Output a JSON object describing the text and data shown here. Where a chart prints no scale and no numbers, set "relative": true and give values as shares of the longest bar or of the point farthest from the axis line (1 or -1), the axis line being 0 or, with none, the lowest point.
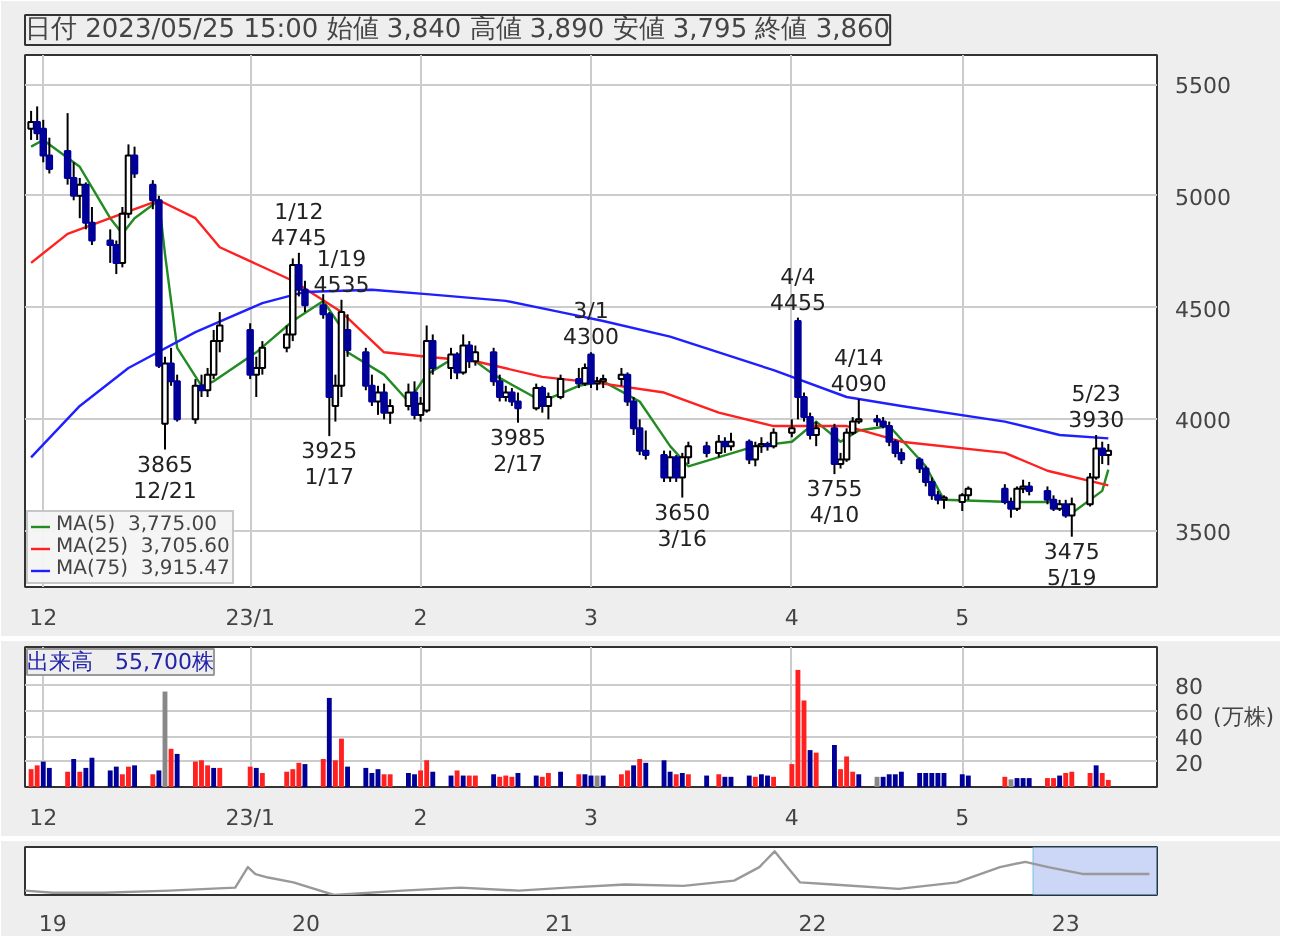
{
  "chart_data": [
    {
      "type": "candlestick",
      "title": "日付 2023/05/25 15:00 始値 3,840 高値 3,890 安値 3,795 終値 3,860",
      "x": [
        "2022-11-29",
        "2022-11-30",
        "2022-12-01",
        "2022-12-02",
        "2022-12-05",
        "2022-12-06",
        "2022-12-07",
        "2022-12-08",
        "2022-12-09",
        "2022-12-12",
        "2022-12-13",
        "2022-12-14",
        "2022-12-15",
        "2022-12-16",
        "2022-12-19",
        "2022-12-20",
        "2022-12-21",
        "2022-12-22",
        "2022-12-23",
        "2022-12-26",
        "2022-12-27",
        "2022-12-28",
        "2022-12-29",
        "2022-12-30",
        "2023-01-04",
        "2023-01-05",
        "2023-01-06",
        "2023-01-10",
        "2023-01-11",
        "2023-01-12",
        "2023-01-13",
        "2023-01-16",
        "2023-01-17",
        "2023-01-18",
        "2023-01-19",
        "2023-01-20",
        "2023-01-23",
        "2023-01-24",
        "2023-01-25",
        "2023-01-26",
        "2023-01-27",
        "2023-01-30",
        "2023-01-31",
        "2023-02-01",
        "2023-02-02",
        "2023-02-03",
        "2023-02-06",
        "2023-02-07",
        "2023-02-08",
        "2023-02-09",
        "2023-02-10",
        "2023-02-13",
        "2023-02-14",
        "2023-02-15",
        "2023-02-16",
        "2023-02-17",
        "2023-02-20",
        "2023-02-21",
        "2023-02-22",
        "2023-02-24",
        "2023-02-27",
        "2023-02-28",
        "2023-03-01",
        "2023-03-02",
        "2023-03-03",
        "2023-03-06",
        "2023-03-07",
        "2023-03-08",
        "2023-03-09",
        "2023-03-10",
        "2023-03-13",
        "2023-03-14",
        "2023-03-15",
        "2023-03-16",
        "2023-03-17",
        "2023-03-20",
        "2023-03-22",
        "2023-03-23",
        "2023-03-24",
        "2023-03-27",
        "2023-03-28",
        "2023-03-29",
        "2023-03-30",
        "2023-03-31",
        "2023-04-03",
        "2023-04-04",
        "2023-04-05",
        "2023-04-06",
        "2023-04-07",
        "2023-04-10",
        "2023-04-11",
        "2023-04-12",
        "2023-04-13",
        "2023-04-14",
        "2023-04-17",
        "2023-04-18",
        "2023-04-19",
        "2023-04-20",
        "2023-04-21",
        "2023-04-24",
        "2023-04-25",
        "2023-04-26",
        "2023-04-27",
        "2023-04-28",
        "2023-05-01",
        "2023-05-02",
        "2023-05-08",
        "2023-05-09",
        "2023-05-10",
        "2023-05-11",
        "2023-05-12",
        "2023-05-15",
        "2023-05-16",
        "2023-05-17",
        "2023-05-18",
        "2023-05-19",
        "2023-05-22",
        "2023-05-23",
        "2023-05-24",
        "2023-05-25"
      ],
      "ohlc": [
        [
          5300,
          5380,
          5250,
          5330
        ],
        [
          5330,
          5400,
          5250,
          5280
        ],
        [
          5300,
          5340,
          5150,
          5180
        ],
        [
          5180,
          5260,
          5100,
          5120
        ],
        [
          5200,
          5370,
          5050,
          5080
        ],
        [
          5080,
          5150,
          4980,
          5000
        ],
        [
          5000,
          5080,
          4900,
          5050
        ],
        [
          5050,
          5060,
          4850,
          4880
        ],
        [
          4880,
          4950,
          4780,
          4800
        ],
        [
          4800,
          4850,
          4700,
          4780
        ],
        [
          4780,
          4800,
          4650,
          4700
        ],
        [
          4700,
          4950,
          4680,
          4920
        ],
        [
          4920,
          5230,
          4900,
          5180
        ],
        [
          5180,
          5220,
          5080,
          5100
        ],
        [
          5050,
          5070,
          4940,
          4980
        ],
        [
          4980,
          5000,
          4230,
          4240
        ],
        [
          3980,
          4280,
          3865,
          4250
        ],
        [
          4250,
          4320,
          4150,
          4170
        ],
        [
          4170,
          4200,
          3990,
          4000
        ],
        [
          4000,
          4180,
          3980,
          4150
        ],
        [
          4150,
          4200,
          4100,
          4130
        ],
        [
          4130,
          4230,
          4100,
          4200
        ],
        [
          4200,
          4400,
          4180,
          4350
        ],
        [
          4350,
          4480,
          4300,
          4420
        ],
        [
          4400,
          4430,
          4180,
          4200
        ],
        [
          4200,
          4280,
          4100,
          4230
        ],
        [
          4230,
          4350,
          4200,
          4320
        ],
        [
          4320,
          4420,
          4300,
          4380
        ],
        [
          4380,
          4720,
          4350,
          4690
        ],
        [
          4690,
          4745,
          4550,
          4580
        ],
        [
          4580,
          4620,
          4480,
          4510
        ],
        [
          4510,
          4560,
          4450,
          4470
        ],
        [
          4470,
          4480,
          3925,
          4100
        ],
        [
          4060,
          4200,
          3990,
          4150
        ],
        [
          4150,
          4535,
          4100,
          4480
        ],
        [
          4400,
          4470,
          4280,
          4310
        ],
        [
          4300,
          4320,
          4130,
          4150
        ],
        [
          4150,
          4200,
          4060,
          4080
        ],
        [
          4080,
          4150,
          4020,
          4120
        ],
        [
          4120,
          4160,
          4000,
          4030
        ],
        [
          4030,
          4090,
          3980,
          4060
        ],
        [
          4060,
          4160,
          4040,
          4120
        ],
        [
          4120,
          4170,
          4000,
          4020
        ],
        [
          4020,
          4100,
          3990,
          4070
        ],
        [
          4040,
          4420,
          4030,
          4350
        ],
        [
          4350,
          4380,
          4200,
          4230
        ],
        [
          4230,
          4320,
          4180,
          4290
        ],
        [
          4290,
          4300,
          4180,
          4210
        ],
        [
          4210,
          4380,
          4200,
          4330
        ],
        [
          4330,
          4350,
          4230,
          4260
        ],
        [
          4260,
          4330,
          4240,
          4300
        ],
        [
          4300,
          4320,
          4150,
          4170
        ],
        [
          4170,
          4200,
          4080,
          4100
        ],
        [
          4100,
          4150,
          4080,
          4120
        ],
        [
          4120,
          4140,
          4060,
          4080
        ],
        [
          4080,
          4120,
          3985,
          4050
        ],
        [
          4050,
          4160,
          4040,
          4140
        ],
        [
          4140,
          4150,
          4030,
          4060
        ],
        [
          4060,
          4120,
          4000,
          4100
        ],
        [
          4100,
          4200,
          4090,
          4180
        ],
        [
          4180,
          4230,
          4140,
          4160
        ],
        [
          4160,
          4250,
          4150,
          4230
        ],
        [
          4290,
          4300,
          4140,
          4160
        ],
        [
          4160,
          4190,
          4130,
          4170
        ],
        [
          4170,
          4200,
          4140,
          4180
        ],
        [
          4180,
          4230,
          4150,
          4200
        ],
        [
          4200,
          4210,
          4060,
          4080
        ],
        [
          4080,
          4100,
          3930,
          3960
        ],
        [
          3960,
          4000,
          3840,
          3860
        ],
        [
          3860,
          3950,
          3820,
          3840
        ],
        [
          3840,
          3860,
          3720,
          3740
        ],
        [
          3740,
          3860,
          3720,
          3830
        ],
        [
          3830,
          3840,
          3720,
          3740
        ],
        [
          3740,
          3850,
          3650,
          3830
        ],
        [
          3830,
          3900,
          3800,
          3880
        ],
        [
          3880,
          3900,
          3830,
          3850
        ],
        [
          3850,
          3930,
          3830,
          3900
        ],
        [
          3900,
          3920,
          3850,
          3880
        ],
        [
          3880,
          3940,
          3860,
          3900
        ],
        [
          3900,
          3910,
          3800,
          3820
        ],
        [
          3820,
          3900,
          3790,
          3880
        ],
        [
          3880,
          3920,
          3850,
          3890
        ],
        [
          3890,
          3900,
          3860,
          3880
        ],
        [
          3880,
          3960,
          3870,
          3940
        ],
        [
          3940,
          4000,
          3920,
          3960
        ],
        [
          4440,
          4455,
          4000,
          4100
        ],
        [
          4100,
          4120,
          3990,
          4010
        ],
        [
          4010,
          4030,
          3910,
          3930
        ],
        [
          3930,
          3990,
          3880,
          3960
        ],
        [
          3960,
          3980,
          3755,
          3800
        ],
        [
          3800,
          3850,
          3780,
          3820
        ],
        [
          3820,
          3960,
          3810,
          3940
        ],
        [
          3940,
          4010,
          3930,
          3990
        ],
        [
          3990,
          4090,
          3980,
          4000
        ],
        [
          4000,
          4020,
          3970,
          3990
        ],
        [
          3990,
          4010,
          3960,
          3970
        ],
        [
          3970,
          3990,
          3880,
          3900
        ],
        [
          3900,
          3910,
          3830,
          3850
        ],
        [
          3850,
          3870,
          3800,
          3820
        ],
        [
          3820,
          3830,
          3760,
          3780
        ],
        [
          3780,
          3790,
          3700,
          3720
        ],
        [
          3720,
          3740,
          3640,
          3660
        ],
        [
          3660,
          3680,
          3620,
          3640
        ],
        [
          3640,
          3660,
          3600,
          3650
        ],
        [
          3630,
          3670,
          3590,
          3660
        ],
        [
          3660,
          3700,
          3640,
          3690
        ],
        [
          3690,
          3710,
          3620,
          3630
        ],
        [
          3630,
          3650,
          3560,
          3600
        ],
        [
          3600,
          3700,
          3590,
          3690
        ],
        [
          3690,
          3730,
          3670,
          3700
        ],
        [
          3700,
          3720,
          3660,
          3680
        ],
        [
          3680,
          3700,
          3620,
          3640
        ],
        [
          3640,
          3660,
          3590,
          3600
        ],
        [
          3600,
          3640,
          3590,
          3620
        ],
        [
          3620,
          3640,
          3560,
          3570
        ],
        [
          3570,
          3650,
          3475,
          3620
        ],
        [
          3620,
          3760,
          3610,
          3740
        ],
        [
          3740,
          3930,
          3730,
          3870
        ],
        [
          3870,
          3900,
          3800,
          3840
        ],
        [
          3840,
          3890,
          3795,
          3860
        ]
      ],
      "series": [
        {
          "name": "MA(5)  3,775.00",
          "color": "#228b22",
          "type": "line",
          "x": [
            "2022-11-29",
            "2022-12-01",
            "2022-12-07",
            "2022-12-12",
            "2022-12-14",
            "2022-12-16",
            "2022-12-20",
            "2022-12-21",
            "2022-12-23",
            "2022-12-27",
            "2022-12-29",
            "2023-01-05",
            "2023-01-11",
            "2023-01-16",
            "2023-01-19",
            "2023-01-20",
            "2023-01-26",
            "2023-01-30",
            "2023-02-02",
            "2023-02-08",
            "2023-02-13",
            "2023-02-21",
            "2023-02-27",
            "2023-03-03",
            "2023-03-09",
            "2023-03-14",
            "2023-03-17",
            "2023-03-28",
            "2023-04-03",
            "2023-04-07",
            "2023-04-11",
            "2023-04-14",
            "2023-04-19",
            "2023-04-25",
            "2023-04-28",
            "2023-05-09",
            "2023-05-16",
            "2023-05-19",
            "2023-05-24",
            "2023-05-25"
          ],
          "values": [
            5220,
            5250,
            5130,
            4900,
            4830,
            4900,
            4980,
            4740,
            4320,
            4150,
            4170,
            4300,
            4440,
            4530,
            4410,
            4300,
            4200,
            4080,
            4200,
            4300,
            4200,
            4080,
            4150,
            4170,
            4080,
            3880,
            3790,
            3880,
            3900,
            3990,
            3900,
            3950,
            3970,
            3790,
            3640,
            3630,
            3630,
            3580,
            3680,
            3775
          ]
        },
        {
          "name": "MA(25)  3,705.60",
          "color": "#ff2020",
          "type": "line",
          "x": [
            "2022-11-29",
            "2022-12-05",
            "2022-12-15",
            "2022-12-20",
            "2022-12-26",
            "2022-12-30",
            "2023-01-11",
            "2023-01-19",
            "2023-01-26",
            "2023-02-02",
            "2023-02-10",
            "2023-02-21",
            "2023-03-03",
            "2023-03-13",
            "2023-03-22",
            "2023-03-31",
            "2023-04-12",
            "2023-04-21",
            "2023-05-08",
            "2023-05-15",
            "2023-05-25"
          ],
          "values": [
            4700,
            4830,
            4930,
            4980,
            4900,
            4770,
            4620,
            4480,
            4300,
            4280,
            4260,
            4190,
            4160,
            4120,
            4030,
            3970,
            3970,
            3900,
            3850,
            3770,
            3705
          ]
        },
        {
          "name": "MA(75)  3,915.47",
          "color": "#2020ff",
          "type": "line",
          "x": [
            "2022-11-29",
            "2022-12-07",
            "2022-12-15",
            "2022-12-26",
            "2023-01-06",
            "2023-01-13",
            "2023-01-24",
            "2023-02-02",
            "2023-02-15",
            "2023-02-24",
            "2023-03-03",
            "2023-03-14",
            "2023-03-31",
            "2023-04-12",
            "2023-04-21",
            "2023-05-08",
            "2023-05-17",
            "2023-05-25"
          ],
          "values": [
            3830,
            4060,
            4230,
            4390,
            4520,
            4570,
            4580,
            4560,
            4530,
            4480,
            4440,
            4370,
            4220,
            4100,
            4060,
            3990,
            3930,
            3915
          ]
        }
      ],
      "annotations": [
        {
          "text": "3865\n12/21",
          "x": "2022-12-21",
          "y": 3865
        },
        {
          "text": "1/12\n4745",
          "x": "2023-01-12",
          "y": 4745
        },
        {
          "text": "3925\n1/17",
          "x": "2023-01-17",
          "y": 3925
        },
        {
          "text": "1/19\n4535",
          "x": "2023-01-19",
          "y": 4535
        },
        {
          "text": "3985\n2/17",
          "x": "2023-02-17",
          "y": 3985
        },
        {
          "text": "3/1\n4300",
          "x": "2023-03-01",
          "y": 4300
        },
        {
          "text": "3650\n3/16",
          "x": "2023-03-16",
          "y": 3650
        },
        {
          "text": "4/4\n4455",
          "x": "2023-04-04",
          "y": 4455
        },
        {
          "text": "3755\n4/10",
          "x": "2023-04-10",
          "y": 3755
        },
        {
          "text": "4/14\n4090",
          "x": "2023-04-14",
          "y": 4090
        },
        {
          "text": "3475\n5/19",
          "x": "2023-05-19",
          "y": 3475
        },
        {
          "text": "5/23\n3930",
          "x": "2023-05-23",
          "y": 3930
        }
      ],
      "xlim": [
        "2022-11-28",
        "2023-06-02"
      ],
      "ylim": [
        3250,
        5630
      ],
      "xticks": [
        {
          "value": "2022-12-01",
          "label": "12"
        },
        {
          "value": "2023-01-04",
          "label": "23/1"
        },
        {
          "value": "2023-02-01",
          "label": "2"
        },
        {
          "value": "2023-03-01",
          "label": "3"
        },
        {
          "value": "2023-04-03",
          "label": "4"
        },
        {
          "value": "2023-05-01",
          "label": "5"
        }
      ],
      "yticks": [
        3500,
        4000,
        4500,
        5000,
        5500
      ],
      "grid": true,
      "legend": "bottom left"
    },
    {
      "type": "bar",
      "title": "出来高　55,700株",
      "ylabel": "(万株)",
      "x": [
        "2022-11-29",
        "2022-11-30",
        "2022-12-01",
        "2022-12-02",
        "2022-12-05",
        "2022-12-06",
        "2022-12-07",
        "2022-12-08",
        "2022-12-09",
        "2022-12-12",
        "2022-12-13",
        "2022-12-14",
        "2022-12-15",
        "2022-12-16",
        "2022-12-19",
        "2022-12-20",
        "2022-12-21",
        "2022-12-22",
        "2022-12-23",
        "2022-12-26",
        "2022-12-27",
        "2022-12-28",
        "2022-12-29",
        "2022-12-30",
        "2023-01-04",
        "2023-01-05",
        "2023-01-06",
        "2023-01-10",
        "2023-01-11",
        "2023-01-12",
        "2023-01-13",
        "2023-01-16",
        "2023-01-17",
        "2023-01-18",
        "2023-01-19",
        "2023-01-20",
        "2023-01-23",
        "2023-01-24",
        "2023-01-25",
        "2023-01-26",
        "2023-01-27",
        "2023-01-30",
        "2023-01-31",
        "2023-02-01",
        "2023-02-02",
        "2023-02-03",
        "2023-02-06",
        "2023-02-07",
        "2023-02-08",
        "2023-02-09",
        "2023-02-10",
        "2023-02-13",
        "2023-02-14",
        "2023-02-15",
        "2023-02-16",
        "2023-02-17",
        "2023-02-20",
        "2023-02-21",
        "2023-02-22",
        "2023-02-24",
        "2023-02-27",
        "2023-02-28",
        "2023-03-01",
        "2023-03-02",
        "2023-03-03",
        "2023-03-06",
        "2023-03-07",
        "2023-03-08",
        "2023-03-09",
        "2023-03-10",
        "2023-03-13",
        "2023-03-14",
        "2023-03-15",
        "2023-03-16",
        "2023-03-17",
        "2023-03-20",
        "2023-03-22",
        "2023-03-23",
        "2023-03-24",
        "2023-03-27",
        "2023-03-28",
        "2023-03-29",
        "2023-03-30",
        "2023-03-31",
        "2023-04-03",
        "2023-04-04",
        "2023-04-05",
        "2023-04-06",
        "2023-04-07",
        "2023-04-10",
        "2023-04-11",
        "2023-04-12",
        "2023-04-13",
        "2023-04-14",
        "2023-04-17",
        "2023-04-18",
        "2023-04-19",
        "2023-04-20",
        "2023-04-21",
        "2023-04-24",
        "2023-04-25",
        "2023-04-26",
        "2023-04-27",
        "2023-04-28",
        "2023-05-01",
        "2023-05-02",
        "2023-05-08",
        "2023-05-09",
        "2023-05-10",
        "2023-05-11",
        "2023-05-12",
        "2023-05-15",
        "2023-05-16",
        "2023-05-17",
        "2023-05-18",
        "2023-05-19",
        "2023-05-22",
        "2023-05-23",
        "2023-05-24",
        "2023-05-25"
      ],
      "values": [
        14,
        17,
        20,
        15,
        12,
        22,
        12,
        15,
        23,
        13,
        16,
        10,
        16,
        17,
        10,
        13,
        75,
        30,
        26,
        20,
        21,
        17,
        15,
        15,
        16,
        15,
        11,
        12,
        14,
        19,
        18,
        22,
        70,
        21,
        38,
        16,
        15,
        11,
        14,
        10,
        10,
        11,
        10,
        13,
        21,
        12,
        9,
        13,
        9,
        9,
        9,
        10,
        8,
        9,
        8,
        11,
        9,
        8,
        11,
        12,
        10,
        10,
        9,
        9,
        9,
        10,
        13,
        17,
        22,
        19,
        21,
        12,
        10,
        11,
        10,
        9,
        10,
        8,
        8,
        9,
        8,
        10,
        9,
        8,
        18,
        92,
        68,
        29,
        27,
        33,
        14,
        24,
        12,
        10,
        8,
        8,
        10,
        10,
        12,
        11,
        11,
        11,
        11,
        11,
        10,
        9,
        8,
        6,
        7,
        7,
        7,
        7,
        7,
        9,
        11,
        12,
        11,
        17,
        11,
        5.57
      ],
      "colors": [
        "#ff2020",
        "#ff2020",
        "#000099",
        "#000099",
        "#ff2020",
        "#000099",
        "#ff2020",
        "#000099",
        "#000099",
        "#000099",
        "#000099",
        "#ff2020",
        "#ff2020",
        "#000099",
        "#ff2020",
        "#000099",
        "#888888",
        "#ff2020",
        "#000099",
        "#ff2020",
        "#ff2020",
        "#ff2020",
        "#000099",
        "#ff2020",
        "#ff2020",
        "#000099",
        "#ff2020",
        "#ff2020",
        "#ff2020",
        "#ff2020",
        "#000099",
        "#ff2020",
        "#000099",
        "#ff2020",
        "#ff2020",
        "#000099",
        "#000099",
        "#000099",
        "#000099",
        "#ff2020",
        "#ff2020",
        "#000099",
        "#000099",
        "#ff2020",
        "#ff2020",
        "#000099",
        "#000099",
        "#ff2020",
        "#000099",
        "#ff2020",
        "#ff2020",
        "#000099",
        "#ff2020",
        "#ff2020",
        "#ff2020",
        "#000099",
        "#000099",
        "#ff2020",
        "#ff2020",
        "#000099",
        "#ff2020",
        "#000099",
        "#000099",
        "#888888",
        "#000099",
        "#ff2020",
        "#ff2020",
        "#000099",
        "#ff2020",
        "#000099",
        "#000099",
        "#000099",
        "#ff2020",
        "#000099",
        "#ff2020",
        "#000099",
        "#ff2020",
        "#000099",
        "#000099",
        "#000099",
        "#ff2020",
        "#000099",
        "#000099",
        "#ff2020",
        "#ff2020",
        "#ff2020",
        "#ff2020",
        "#000099",
        "#ff2020",
        "#000099",
        "#ff2020",
        "#ff2020",
        "#ff2020",
        "#000099",
        "#888888",
        "#000099",
        "#000099",
        "#000099",
        "#000099",
        "#000099",
        "#000099",
        "#000099",
        "#000099",
        "#000099",
        "#000099",
        "#000099",
        "#ff2020",
        "#888888",
        "#000099",
        "#000099",
        "#000099",
        "#ff2020",
        "#ff2020",
        "#000099",
        "#ff2020",
        "#ff2020",
        "#ff2020",
        "#000099",
        "#ff2020",
        "#ff2020"
      ],
      "xlim": [
        "2022-11-28",
        "2023-06-02"
      ],
      "ylim": [
        0,
        110
      ],
      "xticks": [
        {
          "value": "2022-12-01",
          "label": "12"
        },
        {
          "value": "2023-01-04",
          "label": "23/1"
        },
        {
          "value": "2023-02-01",
          "label": "2"
        },
        {
          "value": "2023-03-01",
          "label": "3"
        },
        {
          "value": "2023-04-03",
          "label": "4"
        },
        {
          "value": "2023-05-01",
          "label": "5"
        }
      ],
      "yticks": [
        20,
        40,
        60,
        80
      ],
      "grid": true
    },
    {
      "type": "line",
      "relative": true,
      "color": "#999999",
      "x": [
        18.89,
        19.0,
        19.2,
        19.46,
        19.72,
        19.77,
        19.8,
        19.85,
        19.95,
        20.11,
        20.38,
        20.61,
        20.84,
        21.03,
        21.26,
        21.49,
        21.69,
        21.79,
        21.85,
        21.9,
        21.95,
        22.08,
        22.34,
        22.57,
        22.74,
        22.84,
        22.93,
        23.07,
        23.33
      ],
      "values": [
        0.1,
        0.05,
        0.05,
        0.1,
        0.17,
        0.64,
        0.48,
        0.4,
        0.29,
        0,
        0.1,
        0.17,
        0.1,
        0.17,
        0.24,
        0.21,
        0.33,
        0.64,
        1,
        0.64,
        0.29,
        0.24,
        0.14,
        0.29,
        0.64,
        0.76,
        0.64,
        0.48,
        0.48
      ],
      "xlim": [
        18.89,
        23.36
      ],
      "xticks": [
        19,
        20,
        21,
        22,
        23
      ],
      "bands": [
        {
          "axis": "x",
          "from": 22.87,
          "to": 23.36,
          "color": "#aabbf0"
        }
      ]
    }
  ]
}
